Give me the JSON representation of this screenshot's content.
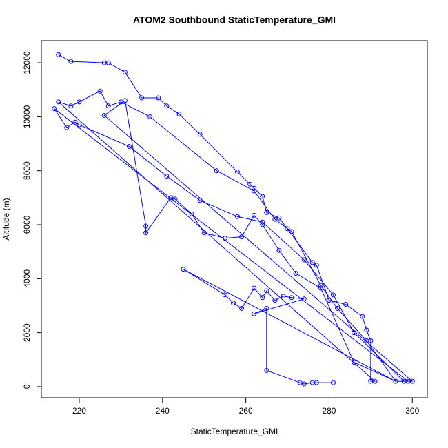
{
  "chart_data": {
    "type": "line",
    "markers": true,
    "title": "ATOM2 Southbound StaticTemperature_GMI",
    "x_label": "StaticTemperature_GMI",
    "y_label": "Altitude (m)",
    "xlim": [
      210.9,
      303.6
    ],
    "ylim": [
      -410,
      12820
    ],
    "xticks": [
      220,
      240,
      260,
      280,
      300
    ],
    "yticks": [
      0,
      2000,
      4000,
      6000,
      8000,
      10000,
      12000
    ],
    "grid": false,
    "series": [
      {
        "color": "#0000ff",
        "x": [
          215,
          218,
          226,
          227,
          231,
          235,
          239,
          241,
          244,
          249,
          258,
          261,
          262,
          264,
          265,
          268,
          270,
          276,
          277,
          280,
          284,
          288,
          289,
          290,
          290,
          291,
          215,
          218,
          220,
          225,
          227,
          230,
          237,
          253,
          262,
          267,
          271,
          278,
          282,
          289,
          296,
          299,
          214,
          217,
          219,
          220,
          232,
          241,
          249,
          258,
          264,
          274,
          281,
          286,
          298,
          300,
          226,
          231,
          236,
          236,
          242,
          243,
          247,
          250,
          255,
          259,
          262,
          264,
          268,
          272,
          278,
          286,
          296,
          245,
          255,
          257,
          259,
          262,
          264,
          265,
          267,
          269,
          271,
          274,
          262,
          265,
          265,
          273,
          274,
          276,
          277,
          281
        ],
        "values": [
          12300,
          12050,
          12000,
          12000,
          11650,
          10700,
          10700,
          10400,
          10100,
          9350,
          7950,
          7500,
          7350,
          7050,
          6450,
          6250,
          5850,
          4600,
          4500,
          3200,
          3050,
          2600,
          2100,
          1700,
          200,
          200,
          10550,
          10400,
          10550,
          10950,
          10400,
          10550,
          10000,
          8000,
          7250,
          6200,
          5750,
          3750,
          2900,
          1700,
          200,
          200,
          10300,
          9600,
          9800,
          9700,
          8900,
          7800,
          6900,
          6300,
          6100,
          4700,
          3400,
          2000,
          200,
          200,
          10050,
          10600,
          5950,
          5700,
          7000,
          6950,
          6400,
          5700,
          5500,
          5550,
          6350,
          6000,
          5050,
          4200,
          3650,
          900,
          200,
          4350,
          3400,
          3100,
          2900,
          3650,
          3300,
          3550,
          3200,
          3350,
          3300,
          3250,
          2700,
          2900,
          600,
          150,
          100,
          150,
          150,
          150
        ]
      }
    ]
  }
}
